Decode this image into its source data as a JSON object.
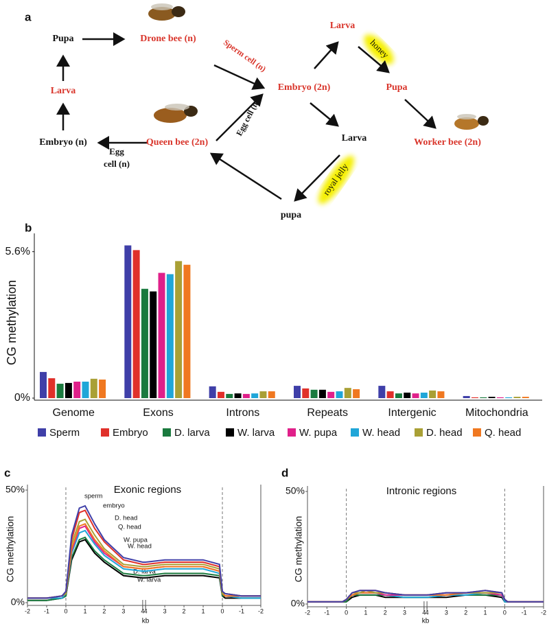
{
  "diagram": {
    "panel": "a",
    "nodes": [
      "Pupa",
      "Drone bee (n)",
      "Larva",
      "Embryo (n)",
      "Queen bee (2n)",
      "Embryo (2n)",
      "Larva",
      "Pupa",
      "Worker bee (2n)",
      "Larva",
      "pupa"
    ],
    "edge_labels": [
      "Sperm cell (n)",
      "Egg cell (n)",
      "Egg",
      "cell (n)",
      "honey",
      "royal jelly"
    ]
  },
  "chart_data": [
    {
      "type": "bar",
      "panel": "b",
      "ylabel": "CG methylation",
      "categories": [
        "Genome",
        "Exons",
        "Introns",
        "Repeats",
        "Intergenic",
        "Mitochondria"
      ],
      "ylim": [
        0,
        6.3
      ],
      "yticks": [
        {
          "value": 0,
          "label": "0%"
        },
        {
          "value": 5.6,
          "label": "5.6%"
        }
      ],
      "series": [
        {
          "name": "Sperm",
          "color": "#3f3fa8",
          "values": [
            1.0,
            5.84,
            0.45,
            0.47,
            0.47,
            0.08
          ]
        },
        {
          "name": "Embryo",
          "color": "#e0302a",
          "values": [
            0.76,
            5.66,
            0.24,
            0.37,
            0.26,
            0.03
          ]
        },
        {
          "name": "D. larva",
          "color": "#1a7a3e",
          "values": [
            0.55,
            4.18,
            0.16,
            0.32,
            0.18,
            0.03
          ]
        },
        {
          "name": "W. larva",
          "color": "#000000",
          "values": [
            0.58,
            4.08,
            0.18,
            0.32,
            0.21,
            0.05
          ]
        },
        {
          "name": "W. pupa",
          "color": "#e0208a",
          "values": [
            0.63,
            4.79,
            0.16,
            0.24,
            0.18,
            0.03
          ]
        },
        {
          "name": "W. head",
          "color": "#20a6d8",
          "values": [
            0.63,
            4.74,
            0.18,
            0.26,
            0.21,
            0.03
          ]
        },
        {
          "name": "D. head",
          "color": "#a9a035",
          "values": [
            0.74,
            5.24,
            0.26,
            0.39,
            0.29,
            0.05
          ]
        },
        {
          "name": "Q. head",
          "color": "#f07820",
          "values": [
            0.71,
            5.1,
            0.26,
            0.34,
            0.26,
            0.05
          ]
        }
      ]
    },
    {
      "type": "line",
      "panel": "c",
      "title": "Exonic regions",
      "ylabel": "CG methylation",
      "xlabel": "kb",
      "x": [
        0,
        1,
        1.8,
        2,
        2.3,
        2.7,
        3,
        3.5,
        4,
        5,
        6,
        6.15,
        7.15,
        8.15,
        9.15,
        10,
        10.15,
        10.3,
        11.15,
        12.15
      ],
      "xlim": [
        0,
        12.15
      ],
      "ylim": [
        0,
        50
      ],
      "xticks": [
        {
          "value": 0,
          "label": "-2"
        },
        {
          "value": 1,
          "label": "-1"
        },
        {
          "value": 2,
          "label": "0"
        },
        {
          "value": 3,
          "label": "1"
        },
        {
          "value": 4,
          "label": "2"
        },
        {
          "value": 5,
          "label": "3"
        },
        {
          "value": 6,
          "label": "4"
        },
        {
          "value": 6.15,
          "label": "4"
        },
        {
          "value": 7.15,
          "label": "3"
        },
        {
          "value": 8.15,
          "label": "2"
        },
        {
          "value": 9.15,
          "label": "1"
        },
        {
          "value": 10.15,
          "label": "0"
        },
        {
          "value": 11.15,
          "label": "-1"
        },
        {
          "value": 12.15,
          "label": "-2"
        }
      ],
      "yticks": [
        {
          "value": 0,
          "label": "0%"
        },
        {
          "value": 50,
          "label": "50%"
        }
      ],
      "vlines": [
        2,
        10.15
      ],
      "axis_break": [
        6,
        6.15
      ],
      "series": [
        {
          "name": "sperm",
          "color": "#3f3fa8",
          "values": [
            2,
            2,
            3,
            5,
            30,
            42,
            43,
            35,
            28,
            20,
            18,
            18,
            19,
            19,
            19,
            17,
            5,
            4,
            3,
            3
          ]
        },
        {
          "name": "embryo",
          "color": "#e0302a",
          "values": [
            2,
            2,
            3,
            5,
            28,
            40,
            41,
            33,
            27,
            19,
            17,
            17,
            18,
            18,
            18,
            16,
            5,
            4,
            3,
            3
          ]
        },
        {
          "name": "D. head",
          "color": "#a9a035",
          "values": [
            2,
            2,
            3,
            4,
            26,
            36,
            37,
            30,
            24,
            17,
            16,
            16,
            17,
            17,
            17,
            15,
            4,
            4,
            3,
            3
          ]
        },
        {
          "name": "Q. head",
          "color": "#f07820",
          "values": [
            2,
            2,
            3,
            4,
            24,
            34,
            35,
            28,
            23,
            16,
            15,
            15,
            16,
            16,
            16,
            14,
            4,
            3,
            3,
            3
          ]
        },
        {
          "name": "W. pupa",
          "color": "#e0208a",
          "values": [
            2,
            2,
            3,
            4,
            23,
            33,
            34,
            27,
            22,
            16,
            15,
            15,
            16,
            16,
            16,
            14,
            4,
            3,
            3,
            3
          ]
        },
        {
          "name": "W. head",
          "color": "#20a6d8",
          "values": [
            2,
            2,
            2,
            4,
            22,
            31,
            32,
            26,
            21,
            15,
            14,
            14,
            15,
            15,
            15,
            13,
            4,
            3,
            2,
            2
          ]
        },
        {
          "name": "D. larva",
          "color": "#1a7a3e",
          "values": [
            1,
            1,
            2,
            3,
            20,
            28,
            29,
            23,
            19,
            13,
            12,
            12,
            13,
            13,
            13,
            12,
            3,
            3,
            2,
            2
          ]
        },
        {
          "name": "W. larva",
          "color": "#000000",
          "values": [
            1,
            1,
            2,
            3,
            19,
            27,
            28,
            22,
            18,
            12,
            11,
            11,
            12,
            12,
            12,
            11,
            3,
            2,
            2,
            2
          ]
        }
      ]
    },
    {
      "type": "line",
      "panel": "d",
      "title": "Intronic regions",
      "ylabel": "CG methylation",
      "xlabel": "kb",
      "x": [
        0,
        1,
        1.8,
        2,
        2.3,
        2.7,
        3,
        3.5,
        4,
        5,
        6,
        6.15,
        7.15,
        8.15,
        9.15,
        10,
        10.15,
        10.3,
        11.15,
        12.15
      ],
      "xlim": [
        0,
        12.15
      ],
      "ylim": [
        0,
        50
      ],
      "xticks": [
        {
          "value": 0,
          "label": "-2"
        },
        {
          "value": 1,
          "label": "-1"
        },
        {
          "value": 2,
          "label": "0"
        },
        {
          "value": 3,
          "label": "1"
        },
        {
          "value": 4,
          "label": "2"
        },
        {
          "value": 5,
          "label": "3"
        },
        {
          "value": 6,
          "label": "4"
        },
        {
          "value": 6.15,
          "label": "4"
        },
        {
          "value": 7.15,
          "label": "3"
        },
        {
          "value": 8.15,
          "label": "2"
        },
        {
          "value": 9.15,
          "label": "1"
        },
        {
          "value": 10.15,
          "label": "0"
        },
        {
          "value": 11.15,
          "label": "-1"
        },
        {
          "value": 12.15,
          "label": "-2"
        }
      ],
      "yticks": [
        {
          "value": 0,
          "label": "0%"
        },
        {
          "value": 50,
          "label": "50%"
        }
      ],
      "vlines": [
        2,
        10.15
      ],
      "axis_break": [
        6,
        6.15
      ],
      "series": [
        {
          "color": "#3f3fa8",
          "values": [
            1,
            1,
            1,
            2,
            5,
            6,
            6,
            6,
            5,
            4,
            4,
            4,
            5,
            5,
            6,
            5,
            2,
            1,
            1,
            1
          ]
        },
        {
          "color": "#e0302a",
          "values": [
            1,
            1,
            1,
            2,
            5,
            6,
            6,
            6,
            5,
            4,
            4,
            4,
            5,
            5,
            6,
            5,
            2,
            1,
            1,
            1
          ]
        },
        {
          "color": "#a9a035",
          "values": [
            1,
            1,
            1,
            2,
            5,
            5,
            6,
            5,
            5,
            4,
            4,
            4,
            5,
            5,
            5,
            5,
            2,
            1,
            1,
            1
          ]
        },
        {
          "color": "#f07820",
          "values": [
            1,
            1,
            1,
            2,
            4,
            5,
            5,
            5,
            5,
            4,
            4,
            4,
            4,
            5,
            5,
            5,
            2,
            1,
            1,
            1
          ]
        },
        {
          "color": "#e0208a",
          "values": [
            1,
            1,
            1,
            2,
            4,
            5,
            5,
            5,
            4,
            4,
            4,
            4,
            4,
            5,
            5,
            4,
            2,
            1,
            1,
            1
          ]
        },
        {
          "color": "#20a6d8",
          "values": [
            1,
            1,
            1,
            2,
            4,
            5,
            5,
            5,
            4,
            3,
            3,
            3,
            4,
            4,
            5,
            4,
            1,
            1,
            1,
            1
          ]
        },
        {
          "color": "#1a7a3e",
          "values": [
            1,
            1,
            1,
            1,
            4,
            4,
            4,
            4,
            4,
            3,
            3,
            3,
            4,
            4,
            4,
            4,
            1,
            1,
            1,
            1
          ]
        },
        {
          "color": "#000000",
          "values": [
            1,
            1,
            1,
            1,
            3,
            4,
            4,
            4,
            3,
            3,
            3,
            3,
            3,
            4,
            4,
            3,
            1,
            1,
            1,
            1
          ]
        }
      ]
    }
  ]
}
